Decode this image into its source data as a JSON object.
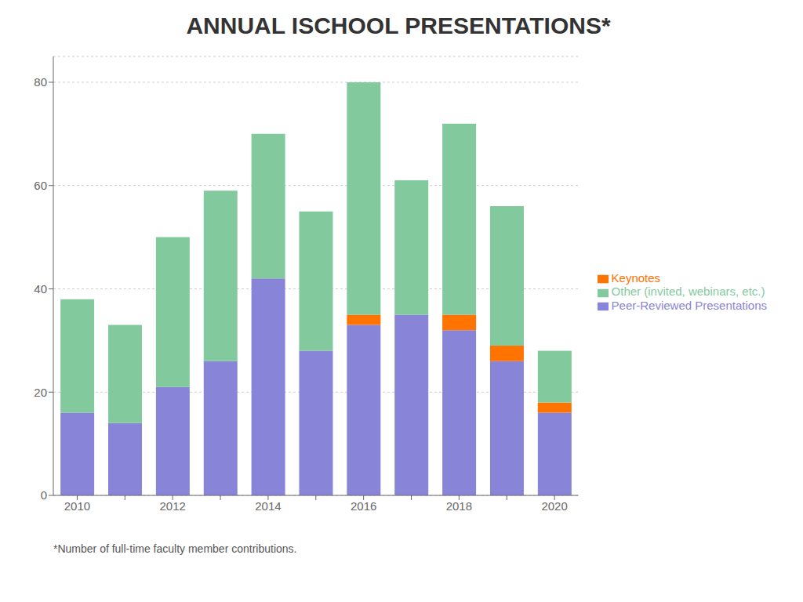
{
  "chart_data": {
    "type": "bar",
    "title": "ANNUAL ISCHOOL PRESENTATIONS*",
    "categories": [
      "2010",
      null,
      "2012",
      null,
      "2014",
      null,
      "2016",
      null,
      "2018",
      null,
      "2020"
    ],
    "series": [
      {
        "name": "Peer-Reviewed Presentations",
        "color": "#8884d8",
        "values": [
          16,
          14,
          21,
          26,
          42,
          28,
          33,
          35,
          32,
          26,
          16
        ]
      },
      {
        "name": "Keynotes",
        "color": "#ff7300",
        "values": [
          0,
          0,
          0,
          0,
          0,
          0,
          2,
          0,
          3,
          3,
          2
        ]
      },
      {
        "name": "Other (invited, webinars, etc.)",
        "color": "#82ca9d",
        "values": [
          22,
          19,
          29,
          33,
          28,
          27,
          45,
          26,
          37,
          27,
          10
        ]
      }
    ],
    "stacked": true,
    "ylim": [
      0,
      85
    ],
    "yticks": [
      0,
      20,
      40,
      60,
      80
    ],
    "grid": true,
    "legend": "right",
    "annotations": [
      "*Number of full-time faculty member contributions."
    ]
  }
}
